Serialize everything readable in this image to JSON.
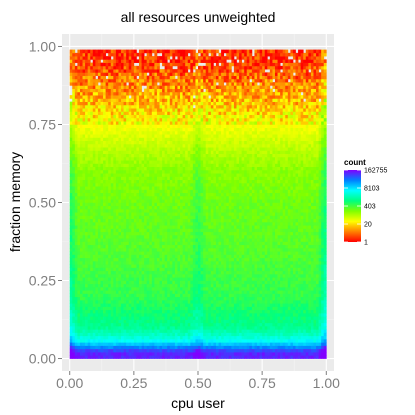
{
  "chart_data": {
    "type": "heatmap",
    "title": "all resources  unweighted",
    "xlabel": "cpu user",
    "ylabel": "fraction memory",
    "xlim": [
      -0.03,
      1.03
    ],
    "ylim": [
      -0.04,
      1.04
    ],
    "x_ticks": [
      0.0,
      0.25,
      0.5,
      0.75,
      1.0
    ],
    "x_tick_labels": [
      "0.00",
      "0.25",
      "0.50",
      "0.75",
      "1.00"
    ],
    "y_ticks": [
      0.0,
      0.25,
      0.5,
      0.75,
      1.0
    ],
    "y_tick_labels": [
      "0.00",
      "0.25",
      "0.50",
      "0.75",
      "1.00"
    ],
    "grid": true,
    "bins": {
      "x_count": 100,
      "y_count": 95,
      "x_range": [
        0,
        1
      ],
      "y_range": [
        0,
        0.99
      ]
    },
    "color_scale": {
      "log_scale": true,
      "colors": [
        "#ff0000",
        "#ff8000",
        "#ffff00",
        "#80ff00",
        "#00ff80",
        "#00ffff",
        "#0080ff",
        "#8000ff"
      ]
    },
    "density_profile": {
      "rows": [
        {
          "y": 0.02,
          "count": 100000
        },
        {
          "y": 0.06,
          "count": 4000
        },
        {
          "y": 0.1,
          "count": 1200
        },
        {
          "y": 0.2,
          "count": 500
        },
        {
          "y": 0.35,
          "count": 300
        },
        {
          "y": 0.5,
          "count": 220
        },
        {
          "y": 0.6,
          "count": 150
        },
        {
          "y": 0.7,
          "count": 60
        },
        {
          "y": 0.8,
          "count": 18
        },
        {
          "y": 0.88,
          "count": 6
        },
        {
          "y": 0.95,
          "count": 2
        }
      ],
      "column_boost": [
        {
          "x": 0.0,
          "factor": 3
        },
        {
          "x": 0.5,
          "factor": 2
        },
        {
          "x": 1.0,
          "factor": 4
        }
      ]
    },
    "legend": {
      "title": "count",
      "position": "right",
      "breaks": [
        162755,
        8103,
        403,
        20,
        1
      ],
      "labels": [
        "162755",
        "8103",
        "403",
        "20",
        "1"
      ]
    }
  }
}
